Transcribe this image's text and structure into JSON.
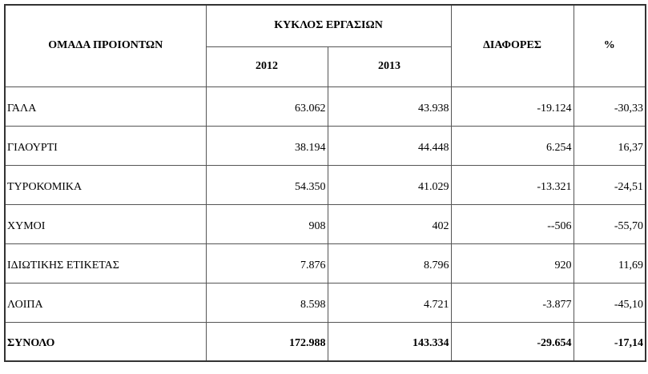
{
  "table": {
    "header": {
      "group": "ΟΜΑΔΑ ΠΡΟΙΟΝΤΩΝ",
      "turnover": "ΚΥΚΛΟΣ  ΕΡΓΑΣΙΩΝ",
      "year1": "2012",
      "year2": "2013",
      "diff": "ΔΙΑΦΟΡΕΣ",
      "pct": "%"
    },
    "rows": [
      [
        "ΓΑΛΑ",
        "63.062",
        "43.938",
        "-19.124",
        "-30,33"
      ],
      [
        "ΓΙΑΟΥΡΤΙ",
        "38.194",
        "44.448",
        "6.254",
        "16,37"
      ],
      [
        "ΤΥΡΟΚΟΜΙΚΑ",
        "54.350",
        "41.029",
        "-13.321",
        "-24,51"
      ],
      [
        "ΧΥΜΟΙ",
        "908",
        "402",
        "--506",
        "-55,70"
      ],
      [
        "ΙΔΙΩΤΙΚΗΣ ΕΤΙΚΕΤΑΣ",
        "7.876",
        "8.796",
        "920",
        "11,69"
      ],
      [
        "ΛΟΙΠΑ",
        "8.598",
        "4.721",
        "-3.877",
        "-45,10"
      ]
    ],
    "total": [
      "ΣΥΝΟΛΟ",
      "172.988",
      "143.334",
      "-29.654",
      "-17,14"
    ]
  }
}
